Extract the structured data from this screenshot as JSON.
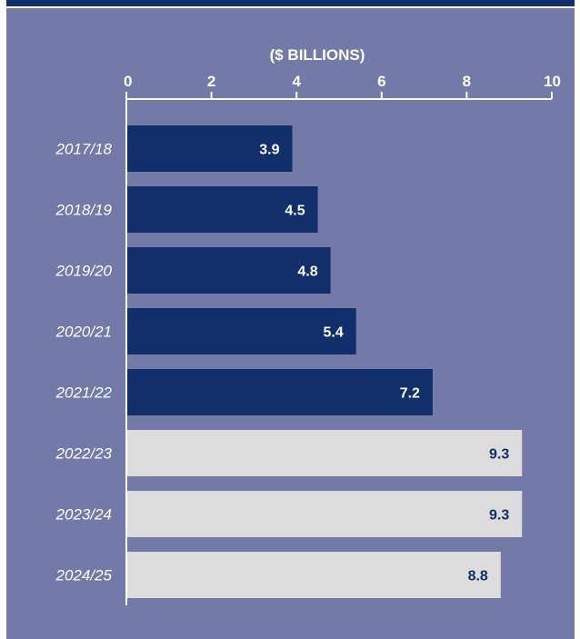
{
  "colors": {
    "panel_background": "#737aa8",
    "top_bar": "#102f6b",
    "actual_bar": "#102f6b",
    "projected_bar": "#dcdcdc",
    "actual_value_text": "#ffffff",
    "projected_value_text": "#102f6b",
    "axis_line": "#ffffff"
  },
  "chart_data": {
    "type": "bar",
    "orientation": "horizontal",
    "title": "",
    "xlabel": "($ BILLIONS)",
    "ylabel": "",
    "xlim": [
      0,
      10
    ],
    "x_ticks": [
      0,
      2,
      4,
      6,
      8,
      10
    ],
    "x_axis_position": "top",
    "grid": false,
    "legend": "none",
    "categories": [
      "2017/18",
      "2018/19",
      "2019/20",
      "2020/21",
      "2021/22",
      "2022/23",
      "2023/24",
      "2024/25"
    ],
    "values": [
      3.9,
      4.5,
      4.8,
      5.4,
      7.2,
      9.3,
      9.3,
      8.8
    ],
    "value_labels": [
      "3.9",
      "4.5",
      "4.8",
      "5.4",
      "7.2",
      "9.3",
      "9.3",
      "8.8"
    ],
    "bar_kind": [
      "actual",
      "actual",
      "actual",
      "actual",
      "actual",
      "projected",
      "projected",
      "projected"
    ]
  }
}
